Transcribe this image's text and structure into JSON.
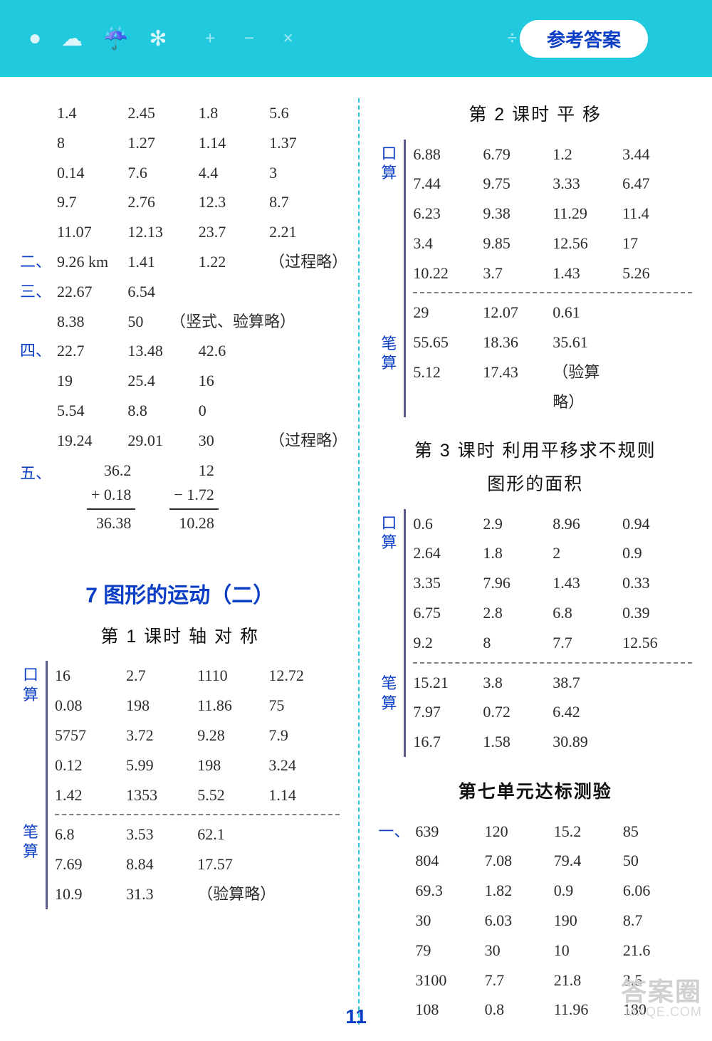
{
  "header": {
    "badge": "参考答案"
  },
  "page_number": "11",
  "watermark": {
    "line1": "答案圈",
    "line2": "MXQE.COM"
  },
  "left": {
    "top_grid": [
      [
        "1.4",
        "2.45",
        "1.8",
        "5.6"
      ],
      [
        "8",
        "1.27",
        "1.14",
        "1.37"
      ],
      [
        "0.14",
        "7.6",
        "4.4",
        "3"
      ],
      [
        "9.7",
        "2.76",
        "12.3",
        "8.7"
      ],
      [
        "11.07",
        "12.13",
        "23.7",
        "2.21"
      ]
    ],
    "sec2": {
      "idx": "二、",
      "cells": [
        "9.26 km",
        "1.41",
        "1.22",
        "（过程略）"
      ]
    },
    "sec3": {
      "idx": "三、",
      "row1": [
        "22.67",
        "6.54"
      ],
      "row2": [
        "8.38",
        "50",
        "（竖式、验算略）"
      ]
    },
    "sec4": {
      "idx": "四、",
      "rows": [
        [
          "22.7",
          "13.48",
          "42.6",
          ""
        ],
        [
          "19",
          "25.4",
          "16",
          ""
        ],
        [
          "5.54",
          "8.8",
          "0",
          ""
        ],
        [
          "19.24",
          "29.01",
          "30",
          "（过程略）"
        ]
      ]
    },
    "sec5": {
      "idx": "五、",
      "arith1": {
        "a": "36.2 ",
        "op": "+",
        "b": "  0.18",
        "res": "36.38"
      },
      "arith2": {
        "a": "12   ",
        "op": "−",
        "b": " 1.72",
        "res": "10.28"
      }
    },
    "chapter": "7  图形的运动（二）",
    "lesson1": "第 1 课时  轴  对  称",
    "kousuan_label": "口算",
    "bisuan_label": "笔算",
    "ks1": [
      [
        "16",
        "2.7",
        "1110",
        "12.72"
      ],
      [
        "0.08",
        "198",
        "11.86",
        "75"
      ],
      [
        "5757",
        "3.72",
        "9.28",
        "7.9"
      ],
      [
        "0.12",
        "5.99",
        "198",
        "3.24"
      ],
      [
        "1.42",
        "1353",
        "5.52",
        "1.14"
      ]
    ],
    "bs1": [
      [
        "6.8",
        "3.53",
        "62.1",
        ""
      ],
      [
        "7.69",
        "8.84",
        "17.57",
        ""
      ],
      [
        "10.9",
        "31.3",
        "（验算略）",
        ""
      ]
    ]
  },
  "right": {
    "lesson2": "第 2 课时  平    移",
    "ks2": [
      [
        "6.88",
        "6.79",
        "1.2",
        "3.44"
      ],
      [
        "7.44",
        "9.75",
        "3.33",
        "6.47"
      ],
      [
        "6.23",
        "9.38",
        "11.29",
        "11.4"
      ],
      [
        "3.4",
        "9.85",
        "12.56",
        "17"
      ],
      [
        "10.22",
        "3.7",
        "1.43",
        "5.26"
      ]
    ],
    "bs2": [
      [
        "29",
        "12.07",
        "0.61",
        ""
      ],
      [
        "55.65",
        "18.36",
        "35.61",
        ""
      ],
      [
        "5.12",
        "17.43",
        "（验算略）",
        ""
      ]
    ],
    "lesson3_l1": "第 3 课时  利用平移求不规则",
    "lesson3_l2": "图形的面积",
    "ks3": [
      [
        "0.6",
        "2.9",
        "8.96",
        "0.94"
      ],
      [
        "2.64",
        "1.8",
        "2",
        "0.9"
      ],
      [
        "3.35",
        "7.96",
        "1.43",
        "0.33"
      ],
      [
        "6.75",
        "2.8",
        "6.8",
        "0.39"
      ],
      [
        "9.2",
        "8",
        "7.7",
        "12.56"
      ]
    ],
    "bs3": [
      [
        "15.21",
        "3.8",
        "38.7",
        ""
      ],
      [
        "7.97",
        "0.72",
        "6.42",
        ""
      ],
      [
        "16.7",
        "1.58",
        "30.89",
        ""
      ]
    ],
    "unit_test": "第七单元达标测验",
    "sec1_idx": "一、",
    "sec1": [
      [
        "639",
        "120",
        "15.2",
        "85"
      ],
      [
        "804",
        "7.08",
        "79.4",
        "50"
      ],
      [
        "69.3",
        "1.82",
        "0.9",
        "6.06"
      ],
      [
        "30",
        "6.03",
        "190",
        "8.7"
      ],
      [
        "79",
        "30",
        "10",
        "21.6"
      ],
      [
        "3100",
        "7.7",
        "21.8",
        "3.5"
      ],
      [
        "108",
        "0.8",
        "11.96",
        "180"
      ]
    ]
  }
}
